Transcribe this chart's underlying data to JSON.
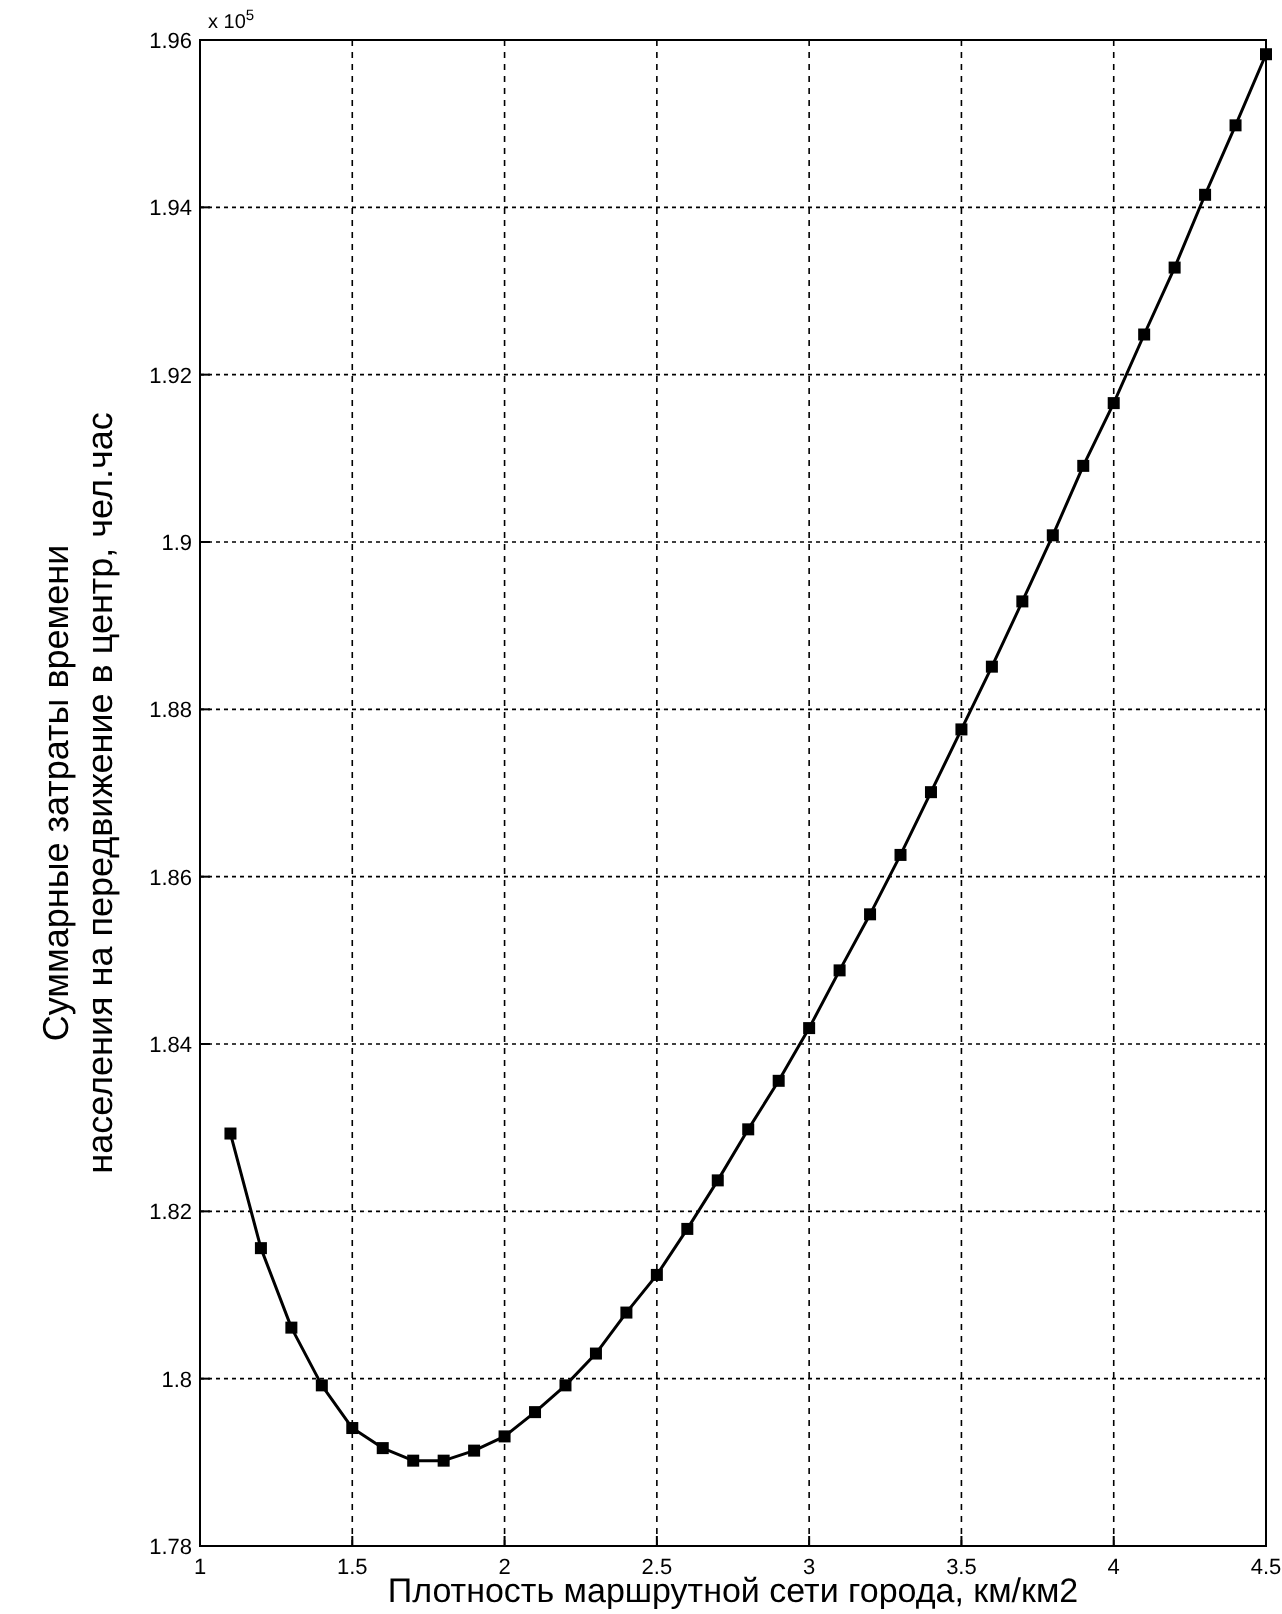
{
  "chart_data": {
    "type": "line",
    "xlabel": "Плотность маршрутной сети города, км/км2",
    "ylabel": "Суммарные затраты времени\nнаселения на передвижение в центр, чел.час",
    "annotations": [
      "x 10$^{5}$"
    ],
    "x": [
      1.1,
      1.2,
      1.3,
      1.4,
      1.5,
      1.6,
      1.7,
      1.8,
      1.9,
      2.0,
      2.1,
      2.2,
      2.3,
      2.4,
      2.5,
      2.6,
      2.7,
      2.8,
      2.9,
      3.0,
      3.1,
      3.2,
      3.3,
      3.4,
      3.5,
      3.6,
      3.7,
      3.8,
      3.9,
      4.0,
      4.1,
      4.2,
      4.3,
      4.4,
      4.5
    ],
    "series": [
      {
        "color": "#000000",
        "values": [
          1.8293,
          1.8156,
          1.8061,
          1.7992,
          1.7941,
          1.7917,
          1.7902,
          1.7902,
          1.7914,
          1.7931,
          1.796,
          1.7992,
          1.803,
          1.8079,
          1.8124,
          1.8179,
          1.8237,
          1.8298,
          1.8356,
          1.8419,
          1.8488,
          1.8555,
          1.8626,
          1.8701,
          1.8776,
          1.8851,
          1.8929,
          1.9008,
          1.9091,
          1.9166,
          1.9248,
          1.9328,
          1.9415,
          1.9498,
          1.9583
        ]
      }
    ],
    "xlim": [
      1,
      4.5
    ],
    "ylim": [
      1.78,
      1.96
    ],
    "xticks": [
      1,
      1.5,
      2,
      2.5,
      3,
      3.5,
      4,
      4.5
    ],
    "yticks": [
      1.78,
      1.8,
      1.82,
      1.84,
      1.86,
      1.88,
      1.9,
      1.92,
      1.94,
      1.96
    ],
    "grid": true,
    "marker": "square",
    "line_style": "solid"
  }
}
